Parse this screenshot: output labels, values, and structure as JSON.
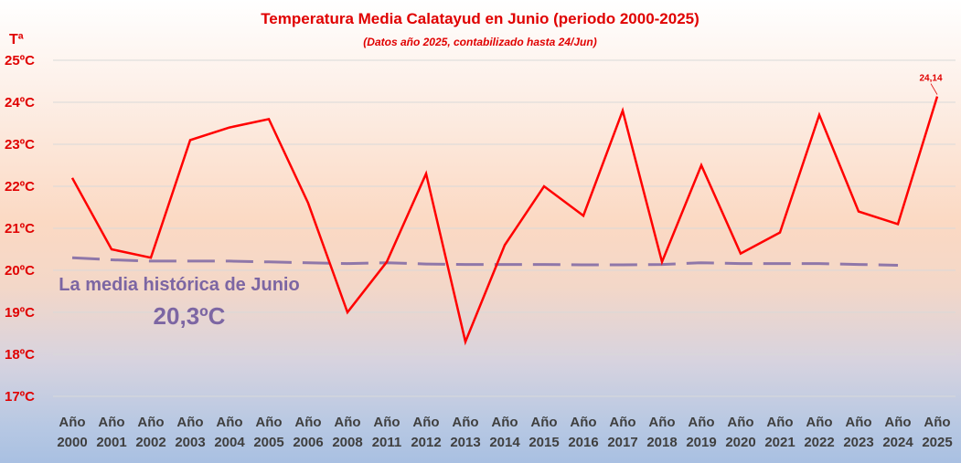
{
  "chart_data": {
    "type": "line",
    "title": "Temperatura Media Calatayud en Junio (periodo 2000-2025)",
    "subtitle": "(Datos año 2025, contabilizado hasta 24/Jun)",
    "ylabel": "Tª",
    "xlabel": "",
    "ylim": [
      17,
      25
    ],
    "yticks": [
      {
        "value": 25,
        "label": "25ºC"
      },
      {
        "value": 24,
        "label": "24ºC"
      },
      {
        "value": 23,
        "label": "23ºC"
      },
      {
        "value": 22,
        "label": "22ºC"
      },
      {
        "value": 21,
        "label": "21ºC"
      },
      {
        "value": 20,
        "label": "20ºC"
      },
      {
        "value": 19,
        "label": "19ºC"
      },
      {
        "value": 18,
        "label": "18ºC"
      },
      {
        "value": 17,
        "label": "17ºC"
      }
    ],
    "grid": true,
    "categories": [
      {
        "line1": "Año",
        "line2": "2000"
      },
      {
        "line1": "Año",
        "line2": "2001"
      },
      {
        "line1": "Año",
        "line2": "2002"
      },
      {
        "line1": "Año",
        "line2": "2003"
      },
      {
        "line1": "Año",
        "line2": "2004"
      },
      {
        "line1": "Año",
        "line2": "2005"
      },
      {
        "line1": "Año",
        "line2": "2006"
      },
      {
        "line1": "Año",
        "line2": "2008"
      },
      {
        "line1": "Año",
        "line2": "2011"
      },
      {
        "line1": "Año",
        "line2": "2012"
      },
      {
        "line1": "Año",
        "line2": "2013"
      },
      {
        "line1": "Año",
        "line2": "2014"
      },
      {
        "line1": "Año",
        "line2": "2015"
      },
      {
        "line1": "Año",
        "line2": "2016"
      },
      {
        "line1": "Año",
        "line2": "2017"
      },
      {
        "line1": "Año",
        "line2": "2018"
      },
      {
        "line1": "Año",
        "line2": "2019"
      },
      {
        "line1": "Año",
        "line2": "2020"
      },
      {
        "line1": "Año",
        "line2": "2021"
      },
      {
        "line1": "Año",
        "line2": "2022"
      },
      {
        "line1": "Año",
        "line2": "2023"
      },
      {
        "line1": "Año",
        "line2": "2024"
      },
      {
        "line1": "Año",
        "line2": "2025"
      }
    ],
    "series": [
      {
        "color": "#ff0000",
        "line_style": "solid",
        "values": [
          22.2,
          20.5,
          20.3,
          23.1,
          23.4,
          23.6,
          21.6,
          19.0,
          20.2,
          22.3,
          18.3,
          20.6,
          22.0,
          21.3,
          23.8,
          20.2,
          22.5,
          20.4,
          20.9,
          23.7,
          21.4,
          21.1,
          24.14
        ]
      },
      {
        "color": "#7c66a3",
        "line_style": "dashed",
        "values": [
          20.3,
          20.25,
          20.22,
          20.22,
          20.22,
          20.2,
          20.18,
          20.16,
          20.18,
          20.15,
          20.14,
          20.14,
          20.14,
          20.13,
          20.13,
          20.14,
          20.18,
          20.16,
          20.16,
          20.16,
          20.14,
          20.12,
          null
        ]
      }
    ],
    "data_labels": [
      {
        "series": 0,
        "index": 22,
        "text": "24,14"
      }
    ],
    "annotations": {
      "note_text": "La media histórica de Junio",
      "note_value": "20,3ºC"
    }
  }
}
